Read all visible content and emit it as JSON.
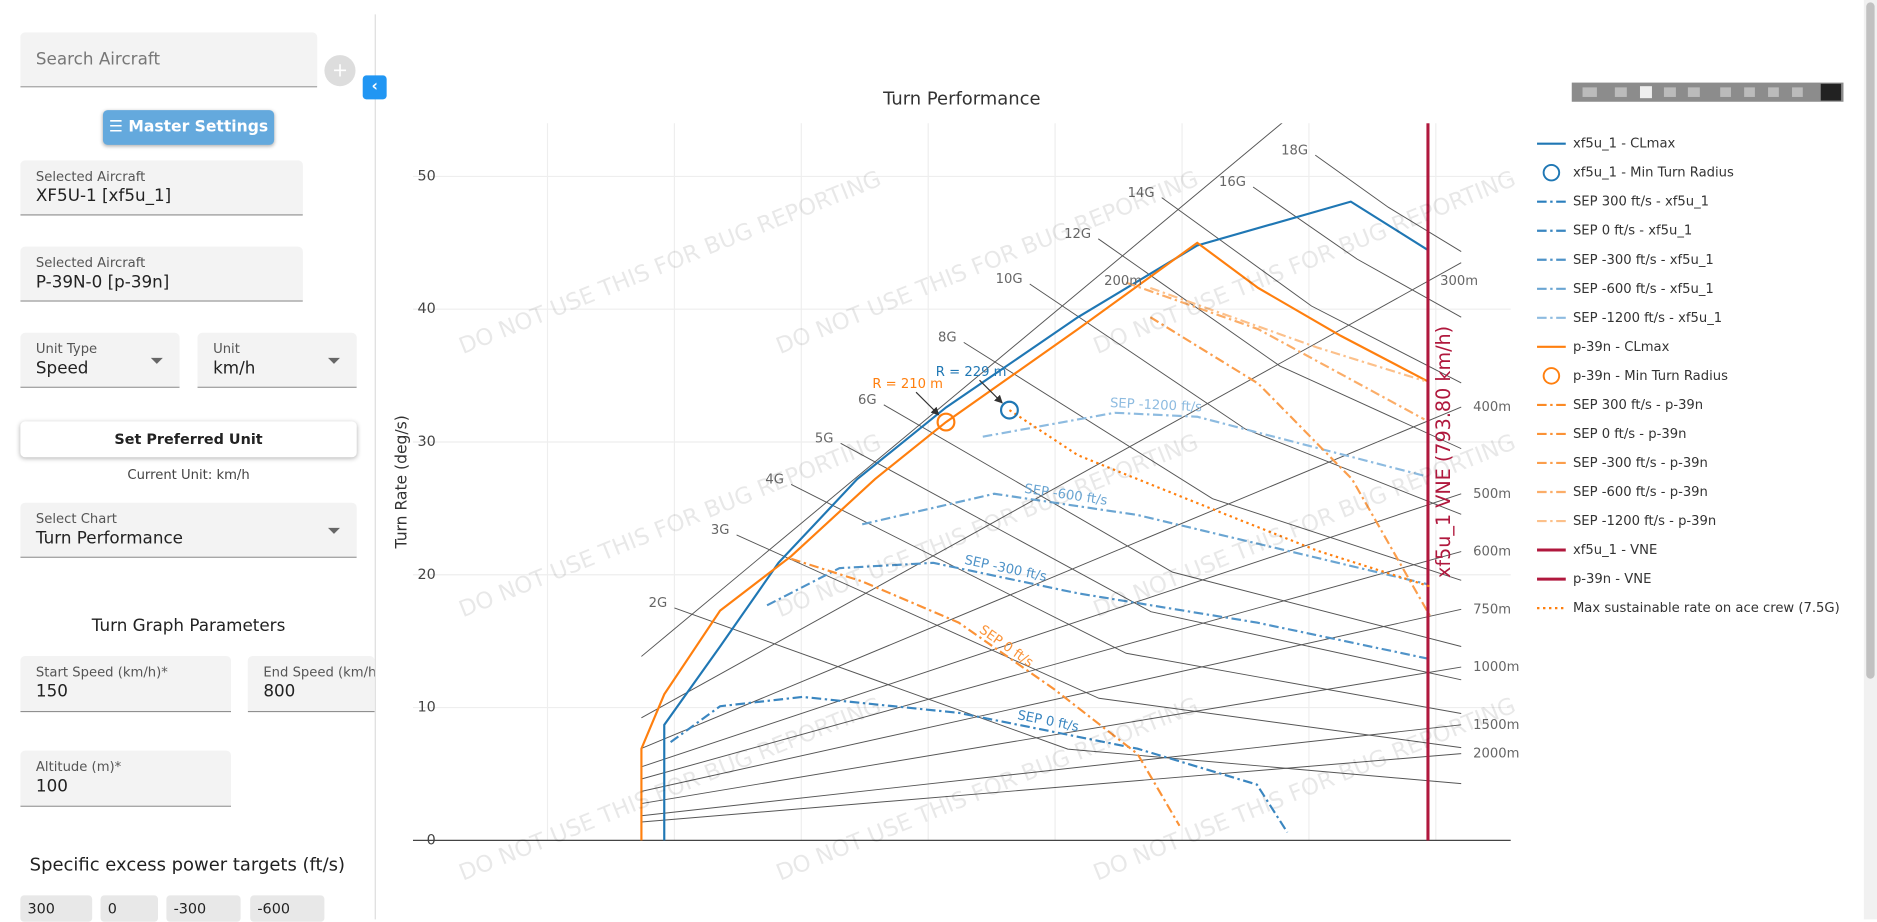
{
  "sidebar": {
    "search_placeholder": "Search Aircraft",
    "master_settings": "Master Settings",
    "aircraft": [
      {
        "label": "Selected Aircraft",
        "value": "XF5U-1 [xf5u_1]"
      },
      {
        "label": "Selected Aircraft",
        "value": "P-39N-0 [p-39n]"
      }
    ],
    "unit_type": {
      "label": "Unit Type",
      "value": "Speed"
    },
    "unit": {
      "label": "Unit",
      "value": "km/h"
    },
    "set_preferred_unit": "Set Preferred Unit",
    "current_unit": "Current Unit: km/h",
    "select_chart": {
      "label": "Select Chart",
      "value": "Turn Performance"
    },
    "turn_graph_parameters": "Turn Graph Parameters",
    "start_speed": {
      "label": "Start Speed (km/h)*",
      "value": "150"
    },
    "end_speed": {
      "label": "End Speed (km/h)*",
      "value": "800"
    },
    "altitude": {
      "label": "Altitude (m)*",
      "value": "100"
    },
    "sep_targets_title": "Specific excess power targets (ft/s)",
    "sep_targets": [
      "300",
      "0",
      "-300",
      "-600"
    ]
  },
  "chart_data": {
    "type": "line",
    "title": "Turn Performance",
    "y_label": "Turn Rate (deg/s)",
    "watermark": "DO NOT USE THIS FOR BUG REPORTING",
    "xlim": [
      -6,
      859
    ],
    "ylim": [
      0,
      54
    ],
    "yticks": [
      0,
      10,
      20,
      30,
      40,
      50
    ],
    "xgrid": [
      100,
      200,
      300,
      400,
      500,
      600,
      700,
      800
    ],
    "grid": true,
    "series": [
      {
        "name": "xf5u_1 - CLmax",
        "color": "#1f77b4",
        "dash": "solid",
        "x": [
          192,
          192,
          236,
          282,
          344,
          414,
          518,
          612,
          733,
          793
        ],
        "y": [
          0,
          8.7,
          14.6,
          20.9,
          27.2,
          32.6,
          39.4,
          44.8,
          48.1,
          44.5
        ]
      },
      {
        "name": "xf5u_1 - Min Turn Radius",
        "color": "#1f77b4",
        "marker": "circle",
        "annotation": "R = 229 m",
        "x": [
          464
        ],
        "y": [
          32.4
        ]
      },
      {
        "name": "SEP 300 ft/s - xf5u_1",
        "color": "#2a7fbd",
        "dash": "dashdot",
        "x": [],
        "y": []
      },
      {
        "name": "SEP 0 ft/s - xf5u_1",
        "color": "#3a86c0",
        "dash": "dashdot",
        "curve_label": "SEP 0 ft/s",
        "x": [
          197,
          236,
          301,
          424,
          565,
          659,
          683
        ],
        "y": [
          7.4,
          10.1,
          10.8,
          9.6,
          6.9,
          4.2,
          0.6
        ]
      },
      {
        "name": "SEP -300 ft/s - xf5u_1",
        "color": "#4f93c8",
        "dash": "dashdot",
        "curve_label": "SEP -300 ft/s",
        "x": [
          273,
          330,
          404,
          518,
          659,
          793
        ],
        "y": [
          17.7,
          20.5,
          20.9,
          18.6,
          16.4,
          13.7
        ]
      },
      {
        "name": "SEP -600 ft/s - xf5u_1",
        "color": "#6aa5d2",
        "dash": "dashdot",
        "curve_label": "SEP -600 ft/s",
        "x": [
          348,
          452,
          565,
          793
        ],
        "y": [
          23.8,
          26.1,
          24.5,
          19.3
        ]
      },
      {
        "name": "SEP -1200 ft/s - xf5u_1",
        "color": "#8dbbe0",
        "dash": "dashdot",
        "curve_label": "SEP -1200 ft/s",
        "x": [
          443,
          547,
          612,
          793
        ],
        "y": [
          30.4,
          32.2,
          31.9,
          27.4
        ]
      },
      {
        "name": "p-39n - CLmax",
        "color": "#ff7f0e",
        "dash": "solid",
        "x": [
          174,
          174,
          192,
          236,
          292,
          358,
          414,
          518,
          612,
          660,
          725,
          793
        ],
        "y": [
          0,
          6.9,
          11,
          17.3,
          21.4,
          27.2,
          31.5,
          38.5,
          45,
          41.6,
          38,
          34.6
        ]
      },
      {
        "name": "p-39n - Min Turn Radius",
        "color": "#ff7f0e",
        "marker": "circle",
        "annotation": "R = 210 m",
        "x": [
          414
        ],
        "y": [
          31.5
        ]
      },
      {
        "name": "SEP 300 ft/s - p-39n",
        "color": "#fb8a25",
        "dash": "dashdot",
        "x": [],
        "y": []
      },
      {
        "name": "SEP 0 ft/s - p-39n",
        "color": "#fb9236",
        "dash": "dashdot",
        "curve_label": "SEP 0 ft/s",
        "x": [
          292,
          348,
          424,
          499,
          565,
          598
        ],
        "y": [
          21.2,
          19.5,
          16.4,
          11.4,
          6.5,
          1.1
        ]
      },
      {
        "name": "SEP -300 ft/s - p-39n",
        "color": "#fb9e4c",
        "dash": "dashdot",
        "x": [
          575,
          660,
          734,
          796
        ],
        "y": [
          39.4,
          34.4,
          27.2,
          16.8
        ]
      },
      {
        "name": "SEP -600 ft/s - p-39n",
        "color": "#fbad68",
        "dash": "dashdot",
        "x": [
          556,
          660,
          791
        ],
        "y": [
          42,
          38.5,
          31.7
        ]
      },
      {
        "name": "SEP -1200 ft/s - p-39n",
        "color": "#fcc08a",
        "dash": "dashdot",
        "x": [
          575,
          707,
          791
        ],
        "y": [
          41.6,
          37.1,
          34.6
        ]
      },
      {
        "name": "xf5u_1 - VNE",
        "color": "#b0183d",
        "dash": "solid",
        "width": 2.5,
        "annotation": "xf5u_1 VNE (793.80 km/h)",
        "x": [
          793.8,
          793.8
        ],
        "y": [
          0,
          54
        ]
      },
      {
        "name": "p-39n - VNE",
        "color": "#b0183d",
        "dash": "solid",
        "width": 2.5,
        "x": [
          793.8,
          793.8
        ],
        "y": [
          0,
          54
        ]
      },
      {
        "name": "Max sustainable rate on ace crew (7.5G)",
        "color": "#ff7f0e",
        "dash": "dot",
        "x": [
          464,
          518,
          612,
          707,
          796
        ],
        "y": [
          32.4,
          29,
          25.4,
          21.8,
          19.1
        ]
      }
    ],
    "g_lines": [
      {
        "label": "2G",
        "x": [
          200,
          510,
          820
        ],
        "y": [
          17.5,
          6.87,
          4.27
        ]
      },
      {
        "label": "3G",
        "x": [
          249,
          534.5,
          820
        ],
        "y": [
          23,
          10.7,
          6.98
        ]
      },
      {
        "label": "4G",
        "x": [
          292,
          556,
          820
        ],
        "y": [
          26.8,
          14.09,
          9.55
        ]
      },
      {
        "label": "5G",
        "x": [
          331,
          575.5,
          820
        ],
        "y": [
          29.9,
          17.22,
          12.09
        ]
      },
      {
        "label": "6G",
        "x": [
          365,
          592.5,
          820
        ],
        "y": [
          32.8,
          20.2,
          14.6
        ]
      },
      {
        "label": "8G",
        "x": [
          428,
          624,
          820
        ],
        "y": [
          37.5,
          25.73,
          19.58
        ]
      },
      {
        "label": "10G",
        "x": [
          480,
          650,
          820
        ],
        "y": [
          41.9,
          30.97,
          24.55
        ]
      },
      {
        "label": "12G",
        "x": [
          534,
          677,
          820
        ],
        "y": [
          45.3,
          35.73,
          29.5
        ]
      },
      {
        "label": "14G",
        "x": [
          584,
          702,
          820
        ],
        "y": [
          48.4,
          40.24,
          34.45
        ]
      },
      {
        "label": "16G",
        "x": [
          656,
          738,
          820
        ],
        "y": [
          49.2,
          43.77,
          39.4
        ]
      },
      {
        "label": "18G",
        "x": [
          705,
          762.5,
          820
        ],
        "y": [
          51.6,
          47.68,
          44.34
        ]
      }
    ],
    "radius_lines": [
      {
        "label": "200m",
        "x": [
          174,
          820
        ],
        "y": [
          13.85,
          65.26
        ]
      },
      {
        "label": "300m",
        "x": [
          174,
          820
        ],
        "y": [
          9.23,
          43.5
        ]
      },
      {
        "label": "400m",
        "x": [
          174,
          820
        ],
        "y": [
          6.92,
          32.63
        ]
      },
      {
        "label": "500m",
        "x": [
          174,
          820
        ],
        "y": [
          5.54,
          26.1
        ]
      },
      {
        "label": "600m",
        "x": [
          174,
          820
        ],
        "y": [
          4.62,
          21.75
        ]
      },
      {
        "label": "750m",
        "x": [
          174,
          820
        ],
        "y": [
          3.69,
          17.4
        ]
      },
      {
        "label": "1000m",
        "x": [
          174,
          820
        ],
        "y": [
          2.77,
          13.05
        ]
      },
      {
        "label": "1500m",
        "x": [
          174,
          820
        ],
        "y": [
          1.85,
          8.7
        ]
      },
      {
        "label": "2000m",
        "x": [
          174,
          820
        ],
        "y": [
          1.38,
          6.53
        ]
      }
    ]
  }
}
